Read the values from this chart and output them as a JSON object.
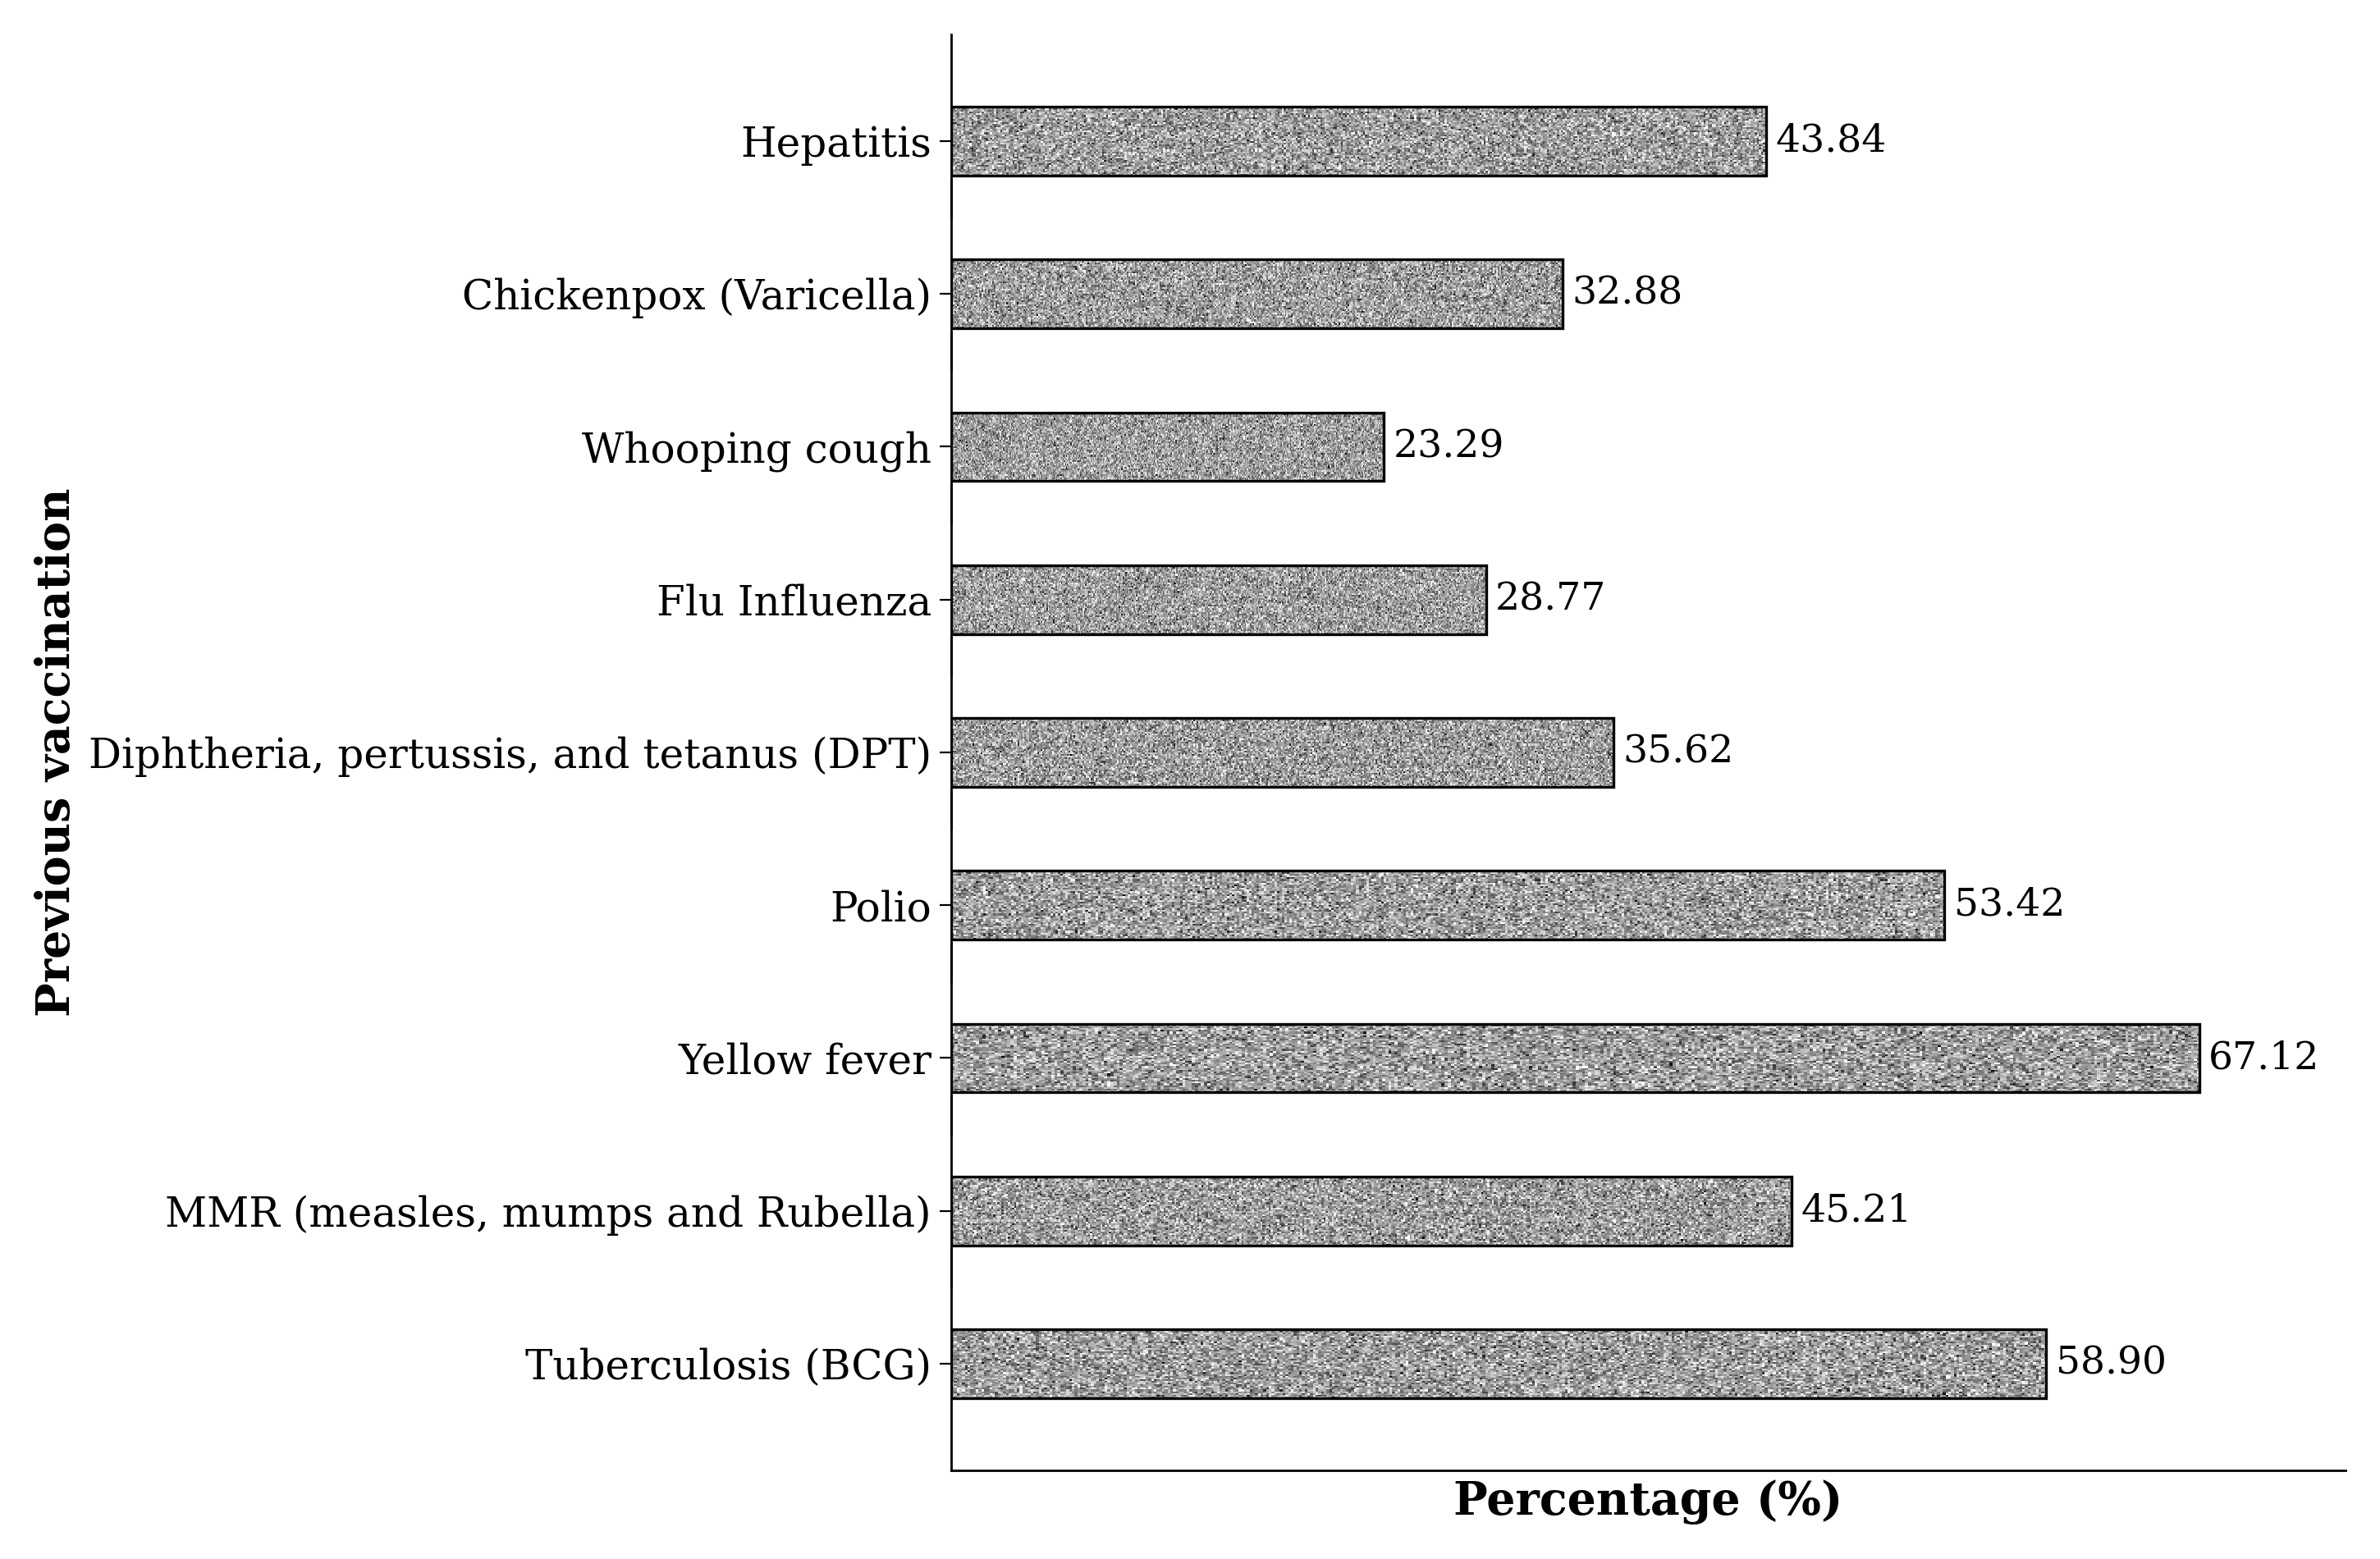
{
  "categories": [
    "Tuberculosis (BCG)",
    "MMR (measles, mumps and Rubella)",
    "Yellow fever",
    "Polio",
    "Diphtheria, pertussis, and tetanus (DPT)",
    "Flu Influenza",
    "Whooping cough",
    "Chickenpox (Varicella)",
    "Hepatitis"
  ],
  "values": [
    58.9,
    45.21,
    67.12,
    53.42,
    35.62,
    28.77,
    23.29,
    32.88,
    43.84
  ],
  "xlabel": "Percentage (%)",
  "ylabel": "Previous vaccination",
  "xlim": [
    0,
    75
  ],
  "bar_color_mean": 0.62,
  "bar_color_std": 0.18,
  "bar_edgecolor": "#000000",
  "background_color": "#ffffff",
  "label_fontsize": 18,
  "axis_label_fontsize": 20,
  "value_fontsize": 17,
  "bar_height": 0.45,
  "figwidth": 14.5,
  "figheight": 9.5
}
